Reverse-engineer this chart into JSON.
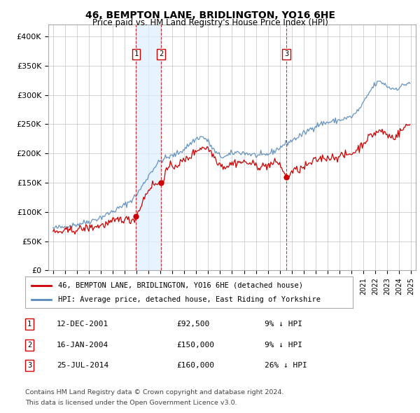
{
  "title": "46, BEMPTON LANE, BRIDLINGTON, YO16 6HE",
  "subtitle": "Price paid vs. HM Land Registry's House Price Index (HPI)",
  "legend_line1": "46, BEMPTON LANE, BRIDLINGTON, YO16 6HE (detached house)",
  "legend_line2": "HPI: Average price, detached house, East Riding of Yorkshire",
  "transactions": [
    {
      "num": 1,
      "date": "12-DEC-2001",
      "price": 92500,
      "pct": "9%",
      "dir": "↓",
      "x_year": 2001.96
    },
    {
      "num": 2,
      "date": "16-JAN-2004",
      "price": 150000,
      "pct": "9%",
      "dir": "↓",
      "x_year": 2004.04
    },
    {
      "num": 3,
      "date": "25-JUL-2014",
      "price": 160000,
      "pct": "26%",
      "dir": "↓",
      "x_year": 2014.56
    }
  ],
  "footnote1": "Contains HM Land Registry data © Crown copyright and database right 2024.",
  "footnote2": "This data is licensed under the Open Government Licence v3.0.",
  "hpi_color": "#5588bb",
  "price_color": "#cc0000",
  "transaction_color": "#cc0000",
  "shading_color": "#ddeeff",
  "grid_color": "#cccccc",
  "bg_color": "#ffffff",
  "ylim": [
    0,
    420000
  ],
  "yticks": [
    0,
    50000,
    100000,
    150000,
    200000,
    250000,
    300000,
    350000,
    400000
  ],
  "xlim_start": 1994.6,
  "xlim_end": 2025.4
}
